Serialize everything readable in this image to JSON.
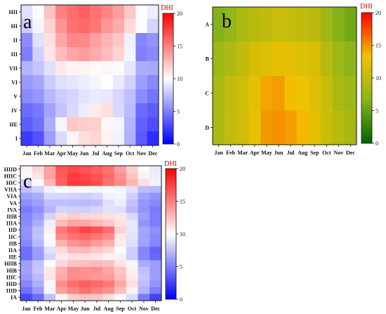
{
  "chart_data": [
    {
      "panel": "a",
      "type": "heatmap",
      "title": "",
      "legend_title": "DHI",
      "colorscale": [
        "#0000ff",
        "#ffffff",
        "#ff0000"
      ],
      "value_range": [
        0,
        20
      ],
      "colorbar_ticks": [
        0,
        5,
        10,
        15,
        20
      ],
      "x_categories": [
        "Jan",
        "Feb",
        "Mar",
        "Apr",
        "May",
        "Jun",
        "Jul",
        "Aug",
        "Sep",
        "Oct",
        "Nov",
        "Dec"
      ],
      "y_categories": [
        "HII",
        "HI",
        "II",
        "III",
        "VII",
        "VI",
        "V",
        "IV",
        "IIE",
        "I"
      ],
      "values": [
        [
          8.8,
          10.2,
          12.4,
          14.9,
          15.7,
          16.3,
          15.5,
          14.8,
          13.8,
          12.2,
          10.1,
          9.3
        ],
        [
          8.0,
          9.6,
          11.8,
          14.2,
          15.6,
          15.9,
          15.3,
          14.1,
          13.3,
          11.5,
          10.1,
          8.3
        ],
        [
          5.5,
          8.8,
          11.2,
          13.5,
          14.7,
          14.7,
          13.7,
          13.0,
          12.2,
          9.4,
          5.2,
          5.8
        ],
        [
          5.0,
          8.2,
          11.0,
          12.6,
          13.5,
          13.9,
          13.3,
          12.6,
          11.7,
          9.6,
          5.0,
          5.4
        ],
        [
          7.0,
          7.7,
          8.8,
          10.9,
          10.4,
          10.5,
          10.2,
          10.3,
          9.9,
          9.0,
          6.8,
          6.6
        ],
        [
          6.0,
          6.5,
          8.0,
          8.8,
          9.0,
          9.3,
          9.6,
          10.0,
          9.2,
          8.2,
          6.2,
          5.4
        ],
        [
          5.4,
          5.9,
          7.2,
          8.0,
          8.3,
          8.9,
          9.2,
          9.1,
          8.4,
          7.5,
          5.5,
          4.6
        ],
        [
          4.2,
          4.7,
          6.4,
          7.7,
          8.5,
          9.3,
          10.8,
          11.3,
          8.5,
          7.3,
          4.2,
          3.6
        ],
        [
          3.7,
          4.4,
          6.8,
          9.6,
          12.2,
          12.0,
          11.9,
          10.3,
          9.6,
          7.0,
          3.8,
          3.0
        ],
        [
          2.3,
          3.2,
          6.2,
          8.5,
          10.4,
          11.3,
          11.6,
          10.5,
          9.4,
          6.9,
          3.5,
          1.8
        ]
      ]
    },
    {
      "panel": "b",
      "type": "heatmap",
      "title": "",
      "legend_title": "DHI",
      "colorscale": [
        "#006400",
        "#8bb51a",
        "#f2c100",
        "#ff0000"
      ],
      "value_range": [
        0,
        20
      ],
      "colorbar_ticks": [
        0,
        5,
        10,
        15,
        20
      ],
      "x_categories": [
        "Jan",
        "Feb",
        "Mar",
        "Apr",
        "May",
        "Jun",
        "Jul",
        "Aug",
        "Sep",
        "Oct",
        "Nov",
        "Dec"
      ],
      "y_categories": [
        "A",
        "B",
        "C",
        "D"
      ],
      "values": [
        [
          6.4,
          7.2,
          8.8,
          9.6,
          10.1,
          10.7,
          10.4,
          10.1,
          9.7,
          8.0,
          6.4,
          5.6
        ],
        [
          7.8,
          9.0,
          10.0,
          11.5,
          11.9,
          12.7,
          12.4,
          12.0,
          11.5,
          9.5,
          7.8,
          6.8
        ],
        [
          8.7,
          10.2,
          11.0,
          12.4,
          14.3,
          14.6,
          13.4,
          13.1,
          12.1,
          10.6,
          8.6,
          7.8
        ],
        [
          8.8,
          10.3,
          11.0,
          12.6,
          14.7,
          15.0,
          14.5,
          13.6,
          12.4,
          10.8,
          9.5,
          8.4
        ]
      ]
    },
    {
      "panel": "c",
      "type": "heatmap",
      "title": "",
      "legend_title": "DHI",
      "colorscale": [
        "#0000ff",
        "#ffffff",
        "#ff0000"
      ],
      "value_range": [
        0,
        20
      ],
      "colorbar_ticks": [
        0,
        5,
        10,
        15,
        20
      ],
      "x_categories": [
        "Jan",
        "Feb",
        "Mar",
        "Apr",
        "May",
        "Jun",
        "Jul",
        "Aug",
        "Sep",
        "Oct",
        "Nov",
        "Dec"
      ],
      "y_categories": [
        "HIID",
        "HIIC",
        "HIC",
        "VIIA",
        "VIA",
        "VA",
        "IVA",
        "IIIB",
        "IIIA",
        "IID",
        "IIC",
        "IIB",
        "IIA",
        "IIE",
        "HIIB",
        "HIB",
        "IIIC",
        "HID",
        "IIID",
        "IA"
      ],
      "values": [
        [
          10.5,
          11.6,
          13.6,
          16.6,
          17.1,
          16.7,
          16.2,
          15.5,
          13.8,
          11.9,
          10.2,
          9.2
        ],
        [
          9.8,
          11.0,
          13.7,
          16.5,
          17.7,
          17.2,
          16.6,
          15.8,
          14.3,
          12.4,
          10.5,
          9.3
        ],
        [
          8.3,
          9.8,
          12.9,
          16.2,
          17.7,
          17.5,
          16.9,
          15.6,
          14.6,
          12.9,
          11.3,
          9.5
        ],
        [
          7.5,
          8.2,
          9.5,
          10.1,
          10.3,
          9.8,
          9.7,
          9.8,
          9.6,
          8.8,
          7.4,
          7.2
        ],
        [
          6.3,
          6.8,
          8.5,
          8.4,
          8.3,
          8.1,
          8.4,
          9.5,
          9.6,
          8.1,
          6.4,
          5.8
        ],
        [
          5.6,
          6.2,
          7.5,
          7.5,
          7.4,
          7.3,
          7.5,
          8.8,
          9.3,
          7.6,
          5.9,
          5.3
        ],
        [
          4.8,
          5.6,
          7.1,
          8.4,
          8.2,
          8.1,
          8.4,
          8.9,
          8.7,
          7.2,
          5.8,
          4.8
        ],
        [
          5.2,
          6.2,
          8.3,
          11.5,
          12.0,
          11.7,
          11.6,
          11.2,
          11.0,
          8.5,
          6.2,
          4.9
        ],
        [
          5.4,
          6.7,
          9.3,
          12.7,
          13.6,
          13.4,
          12.8,
          12.2,
          11.2,
          9.1,
          5.8,
          4.9
        ],
        [
          5.8,
          7.4,
          10.5,
          15.2,
          16.3,
          17.3,
          16.8,
          15.6,
          11.8,
          9.0,
          6.5,
          5.6
        ],
        [
          5.7,
          7.6,
          10.2,
          14.7,
          15.5,
          16.0,
          15.4,
          14.5,
          10.9,
          8.9,
          6.4,
          5.4
        ],
        [
          5.3,
          7.2,
          9.7,
          13.1,
          14.2,
          14.8,
          13.9,
          13.1,
          10.8,
          8.7,
          6.3,
          5.2
        ],
        [
          4.3,
          6.1,
          8.8,
          11.4,
          12.7,
          12.8,
          12.2,
          11.6,
          10.1,
          8.1,
          5.2,
          3.8
        ],
        [
          4.3,
          6.0,
          8.3,
          10.9,
          11.2,
          11.3,
          11.0,
          10.5,
          9.5,
          8.0,
          5.3,
          4.0
        ],
        [
          6.2,
          7.6,
          10.1,
          11.6,
          12.3,
          12.6,
          12.8,
          12.5,
          11.1,
          9.6,
          6.8,
          6.1
        ],
        [
          6.4,
          7.8,
          10.9,
          13.1,
          14.5,
          14.3,
          14.4,
          13.5,
          12.3,
          10.6,
          7.5,
          6.1
        ],
        [
          6.0,
          7.3,
          11.0,
          13.4,
          14.5,
          14.4,
          14.0,
          13.8,
          12.5,
          10.8,
          7.8,
          6.2
        ],
        [
          5.3,
          6.8,
          10.3,
          14.5,
          15.7,
          16.3,
          15.9,
          15.3,
          13.4,
          11.2,
          7.4,
          5.8
        ],
        [
          4.4,
          6.0,
          9.6,
          13.8,
          14.8,
          15.6,
          14.9,
          14.3,
          12.5,
          10.5,
          7.0,
          4.9
        ],
        [
          2.9,
          4.3,
          7.6,
          10.3,
          11.9,
          12.4,
          12.2,
          11.2,
          9.8,
          8.6,
          4.8,
          2.6
        ]
      ]
    }
  ]
}
